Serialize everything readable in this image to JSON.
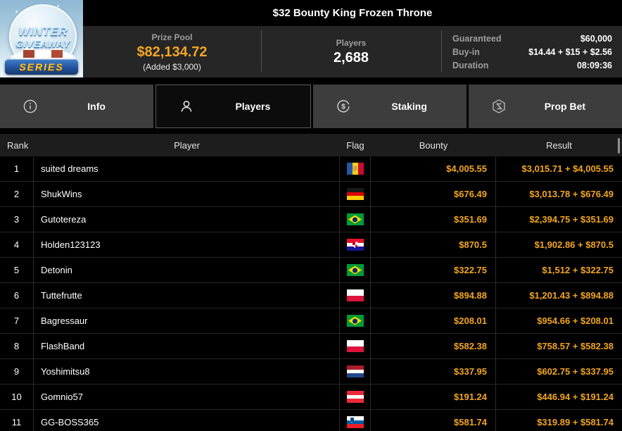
{
  "window": {
    "title": "$32 Bounty King Frozen Throne"
  },
  "logo": {
    "line1": "WINTER",
    "line2": "GIVEAWAY",
    "line3": "SERIES"
  },
  "stats": {
    "prize_pool": {
      "label": "Prize Pool",
      "value": "$82,134.72",
      "added": "(Added $3,000)"
    },
    "players": {
      "label": "Players",
      "value": "2,688"
    },
    "details": [
      {
        "label": "Guaranteed",
        "value": "$60,000"
      },
      {
        "label": "Buy-in",
        "value": "$14.44 + $15 + $2.56"
      },
      {
        "label": "Duration",
        "value": "08:09:36"
      }
    ]
  },
  "tabs": [
    {
      "label": "Info",
      "icon": "info-icon",
      "active": false
    },
    {
      "label": "Players",
      "icon": "players-icon",
      "active": true
    },
    {
      "label": "Staking",
      "icon": "staking-icon",
      "active": false
    },
    {
      "label": "Prop Bet",
      "icon": "prop-bet-icon",
      "active": false
    }
  ],
  "colors": {
    "accent_gold": "#f5a623",
    "value_gold": "#f2a61f",
    "panel_bg": "#262626",
    "tab_inactive_bg": "#3d3d3d",
    "tab_active_border": "#5c5c5c",
    "table_header_bg": "#1d1d1d",
    "row_divider": "#2b2b2b"
  },
  "table": {
    "columns": [
      "Rank",
      "Player",
      "Flag",
      "Bounty",
      "Result"
    ],
    "rows": [
      {
        "rank": "1",
        "player": "suited dreams",
        "bounty": "$4,005.55",
        "result": "$3,015.71 + $4,005.55",
        "flag": {
          "country": "moldova",
          "type": "v",
          "stripes": [
            "#2456a4",
            "#fcd116",
            "#cc092f"
          ],
          "emblem": "md"
        }
      },
      {
        "rank": "2",
        "player": "ShukWins",
        "bounty": "$676.49",
        "result": "$3,013.78 + $676.49",
        "flag": {
          "country": "germany",
          "type": "h",
          "stripes": [
            "#1a1a1a",
            "#dd0000",
            "#ffce00"
          ],
          "emblem": null
        }
      },
      {
        "rank": "3",
        "player": "Gutotereza",
        "bounty": "$351.69",
        "result": "$2,394.75 + $351.69",
        "flag": {
          "country": "brazil",
          "type": "h",
          "stripes": [
            "#009b3a"
          ],
          "emblem": "br"
        }
      },
      {
        "rank": "4",
        "player": "Holden123123",
        "bounty": "$870.5",
        "result": "$1,902.86 + $870.5",
        "flag": {
          "country": "croatia",
          "type": "h",
          "stripes": [
            "#e8112d",
            "#ffffff",
            "#171796"
          ],
          "emblem": "hr"
        }
      },
      {
        "rank": "5",
        "player": "Detonin",
        "bounty": "$322.75",
        "result": "$1,512 + $322.75",
        "flag": {
          "country": "brazil",
          "type": "h",
          "stripes": [
            "#009b3a"
          ],
          "emblem": "br"
        }
      },
      {
        "rank": "6",
        "player": "Tuttefrutte",
        "bounty": "$894.88",
        "result": "$1,201.43 + $894.88",
        "flag": {
          "country": "poland",
          "type": "h",
          "stripes": [
            "#ffffff",
            "#dc143c"
          ],
          "emblem": null
        }
      },
      {
        "rank": "7",
        "player": "Bagressaur",
        "bounty": "$208.01",
        "result": "$954.66 + $208.01",
        "flag": {
          "country": "brazil",
          "type": "h",
          "stripes": [
            "#009b3a"
          ],
          "emblem": "br"
        }
      },
      {
        "rank": "8",
        "player": "FlashBand",
        "bounty": "$582.38",
        "result": "$758.57 + $582.38",
        "flag": {
          "country": "poland",
          "type": "h",
          "stripes": [
            "#ffffff",
            "#dc143c"
          ],
          "emblem": null
        }
      },
      {
        "rank": "9",
        "player": "Yoshimitsu8",
        "bounty": "$337.95",
        "result": "$602.75 + $337.95",
        "flag": {
          "country": "netherlands",
          "type": "h",
          "stripes": [
            "#ae1c28",
            "#ffffff",
            "#21468b"
          ],
          "emblem": null
        }
      },
      {
        "rank": "10",
        "player": "Gomnio57",
        "bounty": "$191.24",
        "result": "$446.94 + $191.24",
        "flag": {
          "country": "austria",
          "type": "h",
          "stripes": [
            "#ed2939",
            "#ffffff",
            "#ed2939"
          ],
          "emblem": null
        }
      },
      {
        "rank": "11",
        "player": "GG-BOSS365",
        "bounty": "$581.74",
        "result": "$319.89 + $581.74",
        "flag": {
          "country": "slovenia",
          "type": "h",
          "stripes": [
            "#ffffff",
            "#005da4",
            "#ed1c24"
          ],
          "emblem": "si"
        }
      }
    ]
  }
}
